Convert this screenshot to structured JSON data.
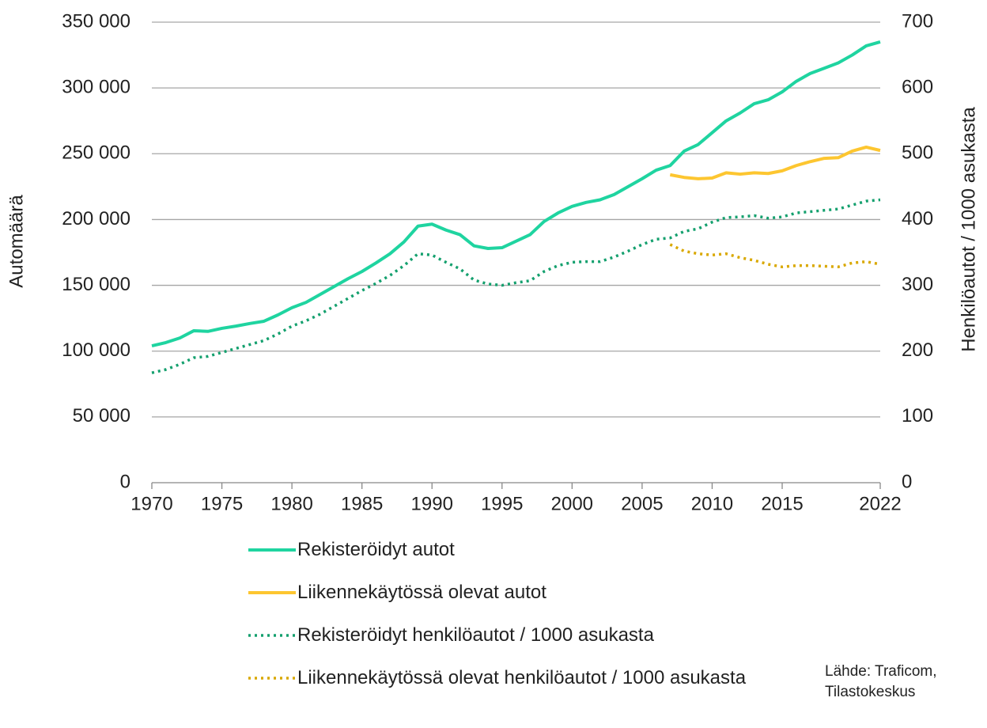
{
  "chart_data": {
    "type": "line",
    "x": [
      1970,
      1971,
      1972,
      1973,
      1974,
      1975,
      1976,
      1977,
      1978,
      1979,
      1980,
      1981,
      1982,
      1983,
      1984,
      1985,
      1986,
      1987,
      1988,
      1989,
      1990,
      1991,
      1992,
      1993,
      1994,
      1995,
      1996,
      1997,
      1998,
      1999,
      2000,
      2001,
      2002,
      2003,
      2004,
      2005,
      2006,
      2007,
      2008,
      2009,
      2010,
      2011,
      2012,
      2013,
      2014,
      2015,
      2016,
      2017,
      2018,
      2019,
      2020,
      2021,
      2022
    ],
    "series": [
      {
        "name": "Rekisteröidyt autot",
        "color": "#1fd4a0",
        "style": "solid",
        "values": [
          104000,
          106500,
          110000,
          115500,
          115000,
          117300,
          119000,
          121000,
          122700,
          127500,
          133000,
          137000,
          143000,
          149000,
          155000,
          160500,
          167000,
          174000,
          183000,
          195000,
          196500,
          192000,
          188500,
          180000,
          178000,
          178600,
          183500,
          188500,
          198500,
          205000,
          210000,
          213000,
          215000,
          219000,
          225000,
          231000,
          237500,
          241000,
          252000,
          257000,
          266000,
          275000,
          281000,
          288000,
          291000,
          297000,
          305000,
          311000,
          315000,
          319000,
          325000,
          332000,
          335000
        ]
      },
      {
        "name": "Liikennekäytössä olevat autot",
        "color": "#fdc630",
        "style": "solid",
        "values": [
          null,
          null,
          null,
          null,
          null,
          null,
          null,
          null,
          null,
          null,
          null,
          null,
          null,
          null,
          null,
          null,
          null,
          null,
          null,
          null,
          null,
          null,
          null,
          null,
          null,
          null,
          null,
          null,
          null,
          null,
          null,
          null,
          null,
          null,
          null,
          null,
          null,
          234000,
          232000,
          231000,
          231500,
          235500,
          234500,
          235500,
          235000,
          237000,
          241000,
          244000,
          246500,
          247000,
          252000,
          255000,
          252500
        ]
      },
      {
        "name": "Rekisteröidyt henkilöautot / 1000 asukasta",
        "color": "#14a06e",
        "style": "dotted",
        "axis": "y2",
        "values": [
          167,
          172,
          180,
          190,
          192,
          198,
          204,
          210,
          216,
          226,
          238,
          246,
          256,
          268,
          280,
          292,
          303,
          315,
          330,
          348,
          346,
          335,
          325,
          308,
          302,
          300,
          304,
          307,
          321,
          330,
          335,
          336,
          336,
          343,
          352,
          362,
          370,
          372,
          382,
          386,
          396,
          403,
          404,
          406,
          402,
          404,
          410,
          412,
          414,
          416,
          422,
          428,
          430
        ]
      },
      {
        "name": "Liikennekäytössä olevat henkilöautot / 1000 asukasta",
        "color": "#d9a800",
        "style": "dotted",
        "axis": "y2",
        "values": [
          null,
          null,
          null,
          null,
          null,
          null,
          null,
          null,
          null,
          null,
          null,
          null,
          null,
          null,
          null,
          null,
          null,
          null,
          null,
          null,
          null,
          null,
          null,
          null,
          null,
          null,
          null,
          null,
          null,
          null,
          null,
          null,
          null,
          null,
          null,
          null,
          null,
          362,
          352,
          348,
          346,
          348,
          342,
          338,
          332,
          328,
          330,
          330,
          329,
          328,
          334,
          336,
          332
        ]
      }
    ],
    "xlim": [
      1970,
      2022
    ],
    "xticks": [
      1970,
      1975,
      1980,
      1985,
      1990,
      1995,
      2000,
      2005,
      2010,
      2015,
      2022
    ],
    "ylim": [
      0,
      350000
    ],
    "yticks": [
      0,
      {
        "value": 50000,
        "label": "50 000"
      },
      {
        "value": 100000,
        "label": "100 000"
      },
      {
        "value": 150000,
        "label": "150 000"
      },
      {
        "value": 200000,
        "label": "200 000"
      },
      {
        "value": 250000,
        "label": "250 000"
      },
      {
        "value": 300000,
        "label": "300 000"
      },
      {
        "value": 350000,
        "label": "350 000"
      }
    ],
    "y2lim": [
      0,
      700
    ],
    "y2ticks": [
      0,
      100,
      200,
      300,
      400,
      500,
      600,
      700
    ],
    "ylabel": "Automäärä",
    "y2label": "Henkilöautot / 1000 asukasta",
    "grid": true,
    "source": [
      "Lähde: Traficom,",
      "Tilastokeskus"
    ]
  }
}
